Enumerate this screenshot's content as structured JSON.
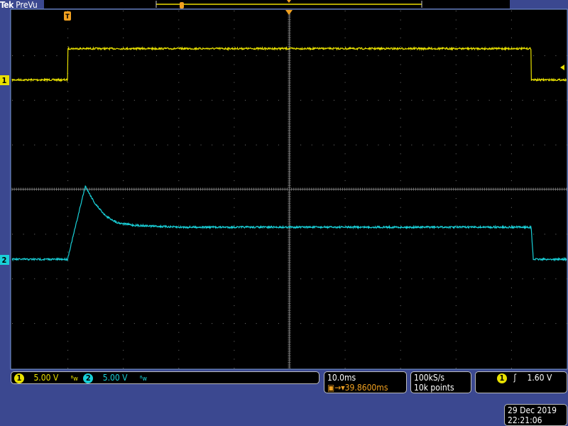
{
  "header": {
    "brand": "Tek",
    "mode": "PreVu"
  },
  "channels": [
    {
      "label": "1",
      "scale": "5.00 V",
      "color": "#e8e000"
    },
    {
      "label": "2",
      "scale": "5.00 V",
      "color": "#19d0d8"
    }
  ],
  "horizontal": {
    "scale": "10.0ms",
    "trigger_delay": "39.8600ms"
  },
  "acquisition": {
    "sample_rate": "100kS/s",
    "record_length": "10k points"
  },
  "trigger": {
    "source": "1",
    "slope": "rising",
    "level": "1.60 V"
  },
  "timestamp": {
    "date": "29 Dec 2019",
    "time": "22:21:06"
  },
  "colors": {
    "ch1": "#e8e000",
    "ch2": "#19d0d8",
    "trigger_marker": "#f0a020",
    "background": "#3b4890"
  },
  "chart_data": {
    "type": "line",
    "grid": true,
    "x_divisions": 10,
    "y_divisions": 8,
    "x_units": "ms relative to trigger",
    "xlim": [
      -10,
      90
    ],
    "y_units": "V",
    "volts_per_div": 5,
    "series": [
      {
        "name": "1",
        "ground_div": 2.45,
        "x": [
          -10,
          0,
          0,
          83.6,
          83.6,
          90
        ],
        "y": [
          0,
          0,
          3.5,
          3.5,
          0,
          0
        ]
      },
      {
        "name": "2",
        "ground_div": -1.57,
        "x": [
          -10,
          0,
          3.2,
          5,
          7,
          9,
          12,
          20,
          83.6,
          84,
          90
        ],
        "y": [
          0,
          0,
          8.2,
          6.2,
          4.8,
          4.1,
          3.8,
          3.6,
          3.6,
          0,
          0
        ]
      }
    ]
  }
}
